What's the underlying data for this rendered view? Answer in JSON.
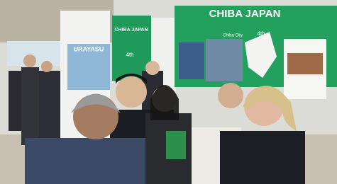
{
  "signs": [
    {
      "label": "CHIBA JAPAN"
    },
    {
      "label": "4th"
    },
    {
      "label": "CHIBA JAPAN"
    },
    {
      "label": "Chiba City"
    },
    {
      "label": "4th"
    },
    {
      "label": "URAYASU"
    }
  ]
}
